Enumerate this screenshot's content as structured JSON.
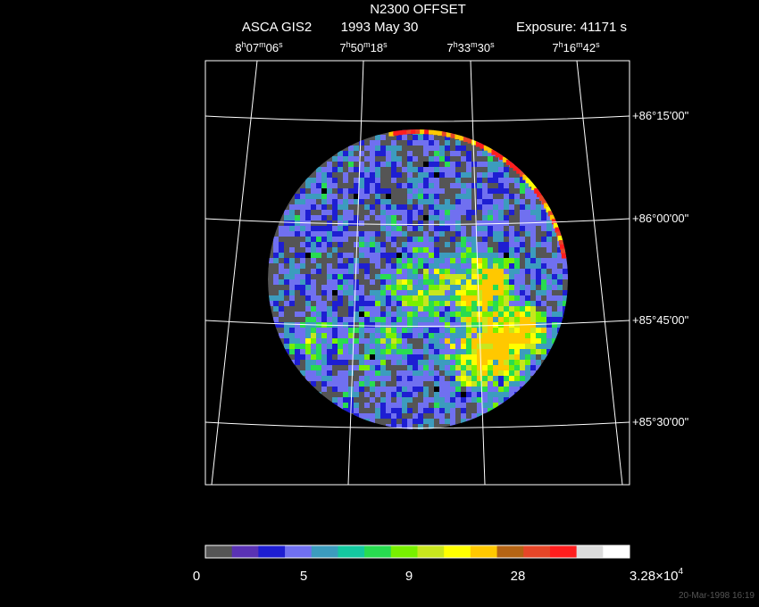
{
  "header": {
    "title": "N2300 OFFSET",
    "instrument": "ASCA GIS2",
    "date": "1993 May 30",
    "exposure": "Exposure: 41171 s"
  },
  "ra_labels": [
    [
      "8",
      "h",
      "07",
      "m",
      "06",
      "s"
    ],
    [
      "7",
      "h",
      "50",
      "m",
      "18",
      "s"
    ],
    [
      "7",
      "h",
      "33",
      "m",
      "30",
      "s"
    ],
    [
      "7",
      "h",
      "16",
      "m",
      "42",
      "s"
    ]
  ],
  "dec_labels": [
    "+86°15'00\"",
    "+86°00'00\"",
    "+85°45'00\"",
    "+85°30'00\""
  ],
  "colorbar": {
    "colors": [
      "#555555",
      "#5a32b4",
      "#1e1ed2",
      "#7070f0",
      "#3c9cbe",
      "#14c8a0",
      "#28dc50",
      "#78f000",
      "#c8e61e",
      "#ffff00",
      "#ffc800",
      "#b46414",
      "#e64628",
      "#ff1e1e",
      "#dcdcdc",
      "#ffffff"
    ],
    "labels": [
      [
        "0"
      ],
      [
        "5"
      ],
      [
        "9"
      ],
      [
        "28"
      ],
      [
        "3.28×10",
        "4"
      ]
    ]
  },
  "timestamp": "20-Mar-1998 16:19"
}
